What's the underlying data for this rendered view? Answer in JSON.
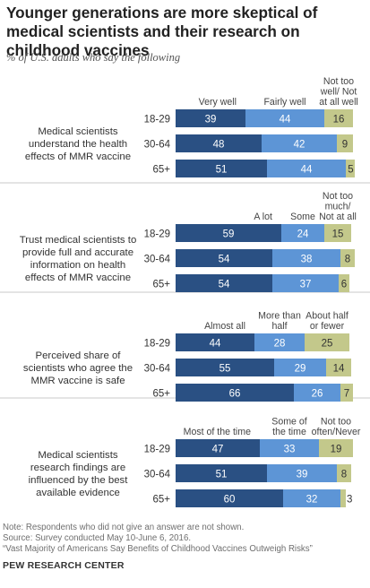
{
  "header": {
    "title": "Younger generations are more skeptical of medical scientists and their research on childhood vaccines",
    "subtitle": "% of U.S. adults who say the following"
  },
  "colors": {
    "dark": "#2a5083",
    "mid": "#5d95d6",
    "light": "#c3c88b",
    "divider": "#c8c8c8"
  },
  "chart_data": [
    {
      "type": "bar",
      "stacked": true,
      "orientation": "horizontal",
      "title": [
        "Medical scientists",
        "understand the health",
        "effects of MMR vaccine"
      ],
      "categories": [
        "18-29",
        "30-64",
        "65+"
      ],
      "series": [
        {
          "name": [
            "Very well"
          ],
          "values": [
            39,
            48,
            51
          ]
        },
        {
          "name": [
            "Fairly well"
          ],
          "values": [
            44,
            42,
            44
          ]
        },
        {
          "name": [
            "Not too",
            "well/ Not",
            "at all well"
          ],
          "values": [
            16,
            9,
            5
          ]
        }
      ]
    },
    {
      "type": "bar",
      "stacked": true,
      "orientation": "horizontal",
      "title": [
        "Trust medical scientists to",
        "provide full and accurate",
        "information on health",
        "effects of MMR vaccine"
      ],
      "categories": [
        "18-29",
        "30-64",
        "65+"
      ],
      "series": [
        {
          "name": [
            "A lot"
          ],
          "values": [
            59,
            54,
            54
          ]
        },
        {
          "name": [
            "Some"
          ],
          "values": [
            24,
            38,
            37
          ]
        },
        {
          "name": [
            "Not too",
            "much/",
            "Not at all"
          ],
          "values": [
            15,
            8,
            6
          ]
        }
      ]
    },
    {
      "type": "bar",
      "stacked": true,
      "orientation": "horizontal",
      "title": [
        "Perceived share of",
        "scientists who agree the",
        "MMR vaccine is safe"
      ],
      "categories": [
        "18-29",
        "30-64",
        "65+"
      ],
      "series": [
        {
          "name": [
            "Almost all"
          ],
          "values": [
            44,
            55,
            66
          ]
        },
        {
          "name": [
            "More than",
            "half"
          ],
          "values": [
            28,
            29,
            26
          ]
        },
        {
          "name": [
            "About half",
            "or fewer"
          ],
          "values": [
            25,
            14,
            7
          ]
        }
      ]
    },
    {
      "type": "bar",
      "stacked": true,
      "orientation": "horizontal",
      "title": [
        "Medical scientists",
        "research findings are",
        "influenced by the best",
        "available evidence"
      ],
      "categories": [
        "18-29",
        "30-64",
        "65+"
      ],
      "series": [
        {
          "name": [
            "Most of the time"
          ],
          "values": [
            47,
            51,
            60
          ]
        },
        {
          "name": [
            "Some of",
            "the time"
          ],
          "values": [
            33,
            39,
            32
          ]
        },
        {
          "name": [
            "Not too",
            "often/Never"
          ],
          "values": [
            19,
            8,
            3
          ]
        }
      ]
    }
  ],
  "footer": {
    "note": "Note: Respondents who did not give an answer are not shown.",
    "source": "Source: Survey conducted May 10-June 6, 2016.",
    "report": "“Vast Majority of Americans Say Benefits of Childhood Vaccines Outweigh Risks”",
    "brand": "PEW RESEARCH CENTER"
  }
}
